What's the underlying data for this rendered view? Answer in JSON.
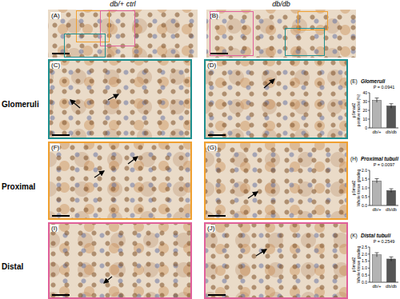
{
  "chart_data": [
    {
      "type": "bar",
      "title": "Glomeruli",
      "ylabel": "pSmad2 positive nuclei (%)",
      "categories": [
        "db/+",
        "db/db"
      ],
      "values": [
        31.5,
        25
      ],
      "errors": [
        2.5,
        2.5
      ],
      "colors": [
        "#b3b3b3",
        "#555555"
      ],
      "ylim": [
        0,
        40
      ],
      "yticks": [
        0,
        10,
        20,
        30,
        40
      ],
      "annotations": [
        "P = 0.0941"
      ]
    },
    {
      "type": "bar",
      "title": "Proximal tubuli",
      "ylabel": "pSmad2 Whole tissue grading",
      "categories": [
        "db/+",
        "db/db"
      ],
      "values": [
        1.4,
        0.85
      ],
      "errors": [
        0.12,
        0.1
      ],
      "colors": [
        "#b3b3b3",
        "#555555"
      ],
      "ylim": [
        0,
        2
      ],
      "yticks": [
        {
          "value": 0,
          "label": "0.0"
        },
        {
          "value": 0.5,
          "label": "0.5"
        },
        {
          "value": 1,
          "label": "1.0"
        },
        {
          "value": 1.5,
          "label": "1.5"
        },
        {
          "value": 2,
          "label": "2.0"
        }
      ],
      "annotations": [
        "P = 0.0097"
      ]
    },
    {
      "type": "bar",
      "title": "Distal tubuli",
      "ylabel": "pSmad2 Whole tissue grading",
      "categories": [
        "db/+",
        "db/db"
      ],
      "values": [
        1.95,
        1.65
      ],
      "errors": [
        0.15,
        0.15
      ],
      "colors": [
        "#b3b3b3",
        "#555555"
      ],
      "ylim": [
        0,
        2.5
      ],
      "yticks": [
        {
          "value": 0,
          "label": "0.0"
        },
        {
          "value": 0.5,
          "label": "0.5"
        },
        {
          "value": 1,
          "label": "1.0"
        },
        {
          "value": 1.5,
          "label": "1.5"
        },
        {
          "value": 2,
          "label": "2.0"
        },
        {
          "value": 2.5,
          "label": "2.5"
        }
      ],
      "annotations": [
        "P = 0.2549"
      ]
    }
  ],
  "figure": {
    "columns": [
      "db/+ ctrl",
      "db/db"
    ],
    "rows": [
      "Glomeruli",
      "Proximal",
      "Distal"
    ],
    "panels": [
      "(A)",
      "(B)",
      "(C)",
      "(D)",
      "(F)",
      "(G)",
      "(I)",
      "(J)"
    ],
    "chart_panels": [
      "(E)",
      "(H)",
      "(K)"
    ]
  }
}
